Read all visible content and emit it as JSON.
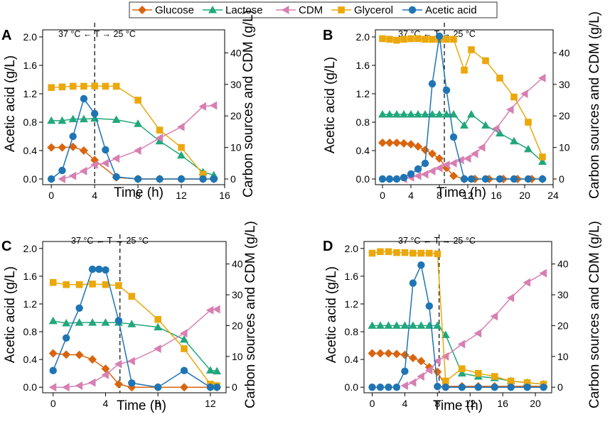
{
  "colors": {
    "Glucose": "#d9650f",
    "Lactose": "#22a77c",
    "CDM": "#d77fb2",
    "Glycerol": "#eba80c",
    "Acetic acid": "#1f74b4"
  },
  "chart_data": [
    {
      "type": "line",
      "panel": "A",
      "annotation": "37 °C ← T → 25 °C",
      "shift_time": 4,
      "xlabel": "Time (h)",
      "ylabel": "Acetic acid (g/L)",
      "y2label": "Carbon sources and CDM (g/L)",
      "xlim": [
        -0.8,
        16
      ],
      "xticks": [
        0,
        4,
        8,
        12,
        16
      ],
      "ylim": [
        -0.08,
        2.1
      ],
      "yticks": [
        0.0,
        0.4,
        0.8,
        1.2,
        1.6,
        2.0
      ],
      "y2lim": [
        -1.8,
        47.3
      ],
      "y2ticks": [
        0,
        10,
        20,
        30,
        40
      ],
      "series": [
        {
          "name": "Glucose",
          "axis": "right",
          "marker": "diamond",
          "x": [
            0,
            1,
            2,
            3,
            4,
            6,
            8,
            10,
            12,
            14,
            15
          ],
          "y": [
            10,
            10,
            10.2,
            9,
            6,
            0.5,
            0,
            0,
            0,
            0,
            0
          ]
        },
        {
          "name": "Lactose",
          "axis": "right",
          "marker": "triangle-up",
          "x": [
            0,
            1,
            2,
            3,
            4,
            6,
            8,
            10,
            12,
            14,
            15
          ],
          "y": [
            18.5,
            18.5,
            19,
            19,
            19.2,
            18.8,
            17.5,
            12,
            7.5,
            2.2,
            1.2
          ]
        },
        {
          "name": "CDM",
          "axis": "right",
          "marker": "triangle-left",
          "x": [
            1,
            2,
            3,
            4,
            5,
            6,
            8,
            10,
            12,
            14,
            15
          ],
          "y": [
            0,
            1,
            2.5,
            4.5,
            5,
            6.5,
            9,
            13,
            16.5,
            23,
            23.3
          ]
        },
        {
          "name": "Glycerol",
          "axis": "right",
          "marker": "square",
          "x": [
            0,
            1,
            2,
            3,
            4,
            5,
            6,
            8,
            10,
            12,
            14
          ],
          "y": [
            29,
            29.2,
            29.4,
            29.4,
            29.5,
            29.4,
            29.4,
            25,
            15.5,
            10,
            1.5
          ]
        },
        {
          "name": "Acetic acid",
          "axis": "left",
          "marker": "circle",
          "x": [
            0,
            1,
            2,
            3,
            4,
            5,
            6,
            8,
            10,
            12,
            14,
            15
          ],
          "y": [
            0.0,
            0.12,
            0.6,
            1.13,
            0.92,
            0.41,
            0.03,
            0.0,
            0.0,
            0.0,
            0.0,
            0.0
          ]
        }
      ]
    },
    {
      "type": "line",
      "panel": "B",
      "annotation": "37 °C ← T → 25 °C",
      "shift_time": 8.7,
      "xlabel": "Time (h)",
      "ylabel": "Acetic acid (g/L)",
      "y2label": "Carbon sources and CDM (g/L)",
      "xlim": [
        -1,
        24
      ],
      "xticks": [
        0,
        4,
        8,
        12,
        16,
        20,
        24
      ],
      "ylim": [
        -0.08,
        2.1
      ],
      "yticks": [
        0.0,
        0.4,
        0.8,
        1.2,
        1.6,
        2.0
      ],
      "y2lim": [
        -1.8,
        47.3
      ],
      "y2ticks": [
        0,
        10,
        20,
        30,
        40
      ],
      "series": [
        {
          "name": "Glucose",
          "axis": "right",
          "marker": "diamond",
          "x": [
            0,
            1,
            2,
            3,
            4,
            5,
            6,
            7,
            8,
            9,
            10,
            11.5,
            13,
            15,
            17,
            19,
            21,
            22.5
          ],
          "y": [
            11.5,
            11.5,
            11.5,
            11.3,
            11,
            10.3,
            9.2,
            8,
            6.5,
            3.5,
            1,
            0,
            0,
            0,
            0,
            0,
            0,
            0
          ]
        },
        {
          "name": "Lactose",
          "axis": "right",
          "marker": "triangle-up",
          "x": [
            0,
            1,
            2,
            3,
            4,
            5,
            6,
            7,
            8,
            9,
            10,
            11.5,
            12.5,
            14.5,
            16.5,
            18.5,
            20.5,
            22.5
          ],
          "y": [
            20.5,
            20.5,
            20.5,
            20.5,
            20.5,
            20.5,
            20.5,
            20.5,
            20.5,
            20.5,
            20.5,
            17,
            20.5,
            17,
            14.5,
            12,
            9.5,
            5.5
          ]
        },
        {
          "name": "CDM",
          "axis": "right",
          "marker": "triangle-left",
          "x": [
            3,
            4,
            5,
            6,
            7,
            8,
            9,
            10,
            11,
            12,
            13,
            14,
            16,
            18,
            20,
            22.5
          ],
          "y": [
            0,
            0.5,
            1,
            1.5,
            2.5,
            3.5,
            4.5,
            5,
            6,
            6.5,
            8,
            10,
            16,
            22,
            27,
            32
          ]
        },
        {
          "name": "Glycerol",
          "axis": "right",
          "marker": "square",
          "x": [
            0,
            1,
            2,
            3,
            4,
            5,
            6,
            7,
            8,
            9,
            10,
            11.5,
            12.5,
            14.5,
            16.5,
            18.5,
            20.5,
            22.5
          ],
          "y": [
            44.5,
            44.3,
            44,
            44.3,
            44.5,
            44.5,
            44.3,
            44.3,
            44.3,
            44.3,
            44.3,
            34.5,
            41,
            37.5,
            32,
            26,
            18,
            7
          ]
        },
        {
          "name": "Acetic acid",
          "axis": "left",
          "marker": "circle",
          "x": [
            0,
            1,
            2,
            3,
            4,
            5,
            6,
            7,
            8,
            9,
            10,
            11.5,
            12.5,
            14.5,
            16.5,
            18.5,
            20.5,
            22.5
          ],
          "y": [
            0.0,
            0.0,
            0.0,
            0.02,
            0.07,
            0.14,
            0.22,
            1.34,
            2.01,
            1.25,
            0.59,
            0.0,
            0.0,
            0.0,
            0.0,
            0.0,
            0.0,
            0.0
          ]
        }
      ]
    },
    {
      "type": "line",
      "panel": "C",
      "annotation": "37 °C ← T → 25 °C",
      "shift_time": 5.1,
      "xlabel": "Time (h)",
      "ylabel": "Acetic acid (g/L)",
      "y2label": "Carbon sources and CDM (g/L)",
      "xlim": [
        -0.8,
        13.2
      ],
      "xticks": [
        0,
        4,
        8,
        12
      ],
      "ylim": [
        -0.08,
        2.1
      ],
      "yticks": [
        0.0,
        0.4,
        0.8,
        1.2,
        1.6,
        2.0
      ],
      "y2lim": [
        -1.8,
        47.3
      ],
      "y2ticks": [
        0,
        10,
        20,
        30,
        40
      ],
      "series": [
        {
          "name": "Glucose",
          "axis": "right",
          "marker": "diamond",
          "x": [
            0,
            1,
            2,
            3,
            4,
            5,
            6,
            8,
            10,
            12,
            12.5
          ],
          "y": [
            11,
            10.6,
            10.5,
            9,
            6,
            1,
            0,
            0,
            0,
            0,
            0
          ]
        },
        {
          "name": "Lactose",
          "axis": "right",
          "marker": "triangle-up",
          "x": [
            0,
            1,
            2,
            3,
            4,
            5,
            6,
            8,
            10,
            12,
            12.5
          ],
          "y": [
            21.5,
            20.8,
            21,
            21,
            21,
            21,
            20.5,
            19.5,
            15.5,
            5.5,
            5.2
          ]
        },
        {
          "name": "CDM",
          "axis": "right",
          "marker": "triangle-left",
          "x": [
            0,
            1,
            2,
            3,
            4,
            5,
            6,
            8,
            10,
            12,
            12.5
          ],
          "y": [
            0,
            0,
            0.5,
            1.5,
            4,
            7.5,
            8.5,
            12.5,
            17.5,
            25,
            25.3
          ]
        },
        {
          "name": "Glycerol",
          "axis": "right",
          "marker": "square",
          "x": [
            0,
            1,
            2,
            3,
            4,
            5,
            6,
            8,
            10,
            12,
            12.5
          ],
          "y": [
            34,
            33.3,
            33.3,
            33.5,
            33.3,
            33,
            29.5,
            22,
            12.5,
            1,
            0.5
          ]
        },
        {
          "name": "Acetic acid",
          "axis": "left",
          "marker": "circle",
          "x": [
            0,
            1,
            2,
            3,
            3.5,
            4,
            5,
            6,
            8,
            10,
            12,
            12.5
          ],
          "y": [
            0.24,
            0.71,
            1.14,
            1.7,
            1.7,
            1.69,
            0.96,
            0.06,
            0.0,
            0.24,
            0.0,
            0.0
          ]
        }
      ]
    },
    {
      "type": "line",
      "panel": "D",
      "annotation": "37 °C ← T → 25 °C",
      "shift_time": 8.2,
      "xlabel": "Time (h)",
      "ylabel": "Acetic acid (g/L)",
      "y2label": "Carbon sources and CDM (g/L)",
      "xlim": [
        -1,
        22
      ],
      "xticks": [
        0,
        4,
        8,
        12,
        16,
        20
      ],
      "ylim": [
        -0.08,
        2.1
      ],
      "yticks": [
        0.0,
        0.4,
        0.8,
        1.2,
        1.6,
        2.0
      ],
      "y2lim": [
        -1.8,
        47.3
      ],
      "y2ticks": [
        0,
        10,
        20,
        30,
        40
      ],
      "series": [
        {
          "name": "Glucose",
          "axis": "right",
          "marker": "diamond",
          "x": [
            0,
            1,
            2,
            3,
            4,
            5,
            6,
            7,
            8,
            9,
            11,
            13,
            15,
            17,
            19,
            21
          ],
          "y": [
            11,
            11,
            11,
            10.8,
            10.5,
            9.5,
            8.5,
            6.5,
            5,
            0.3,
            0.3,
            0.3,
            0.3,
            0.3,
            0.3,
            0.3
          ]
        },
        {
          "name": "Lactose",
          "axis": "right",
          "marker": "triangle-up",
          "x": [
            0,
            1,
            2,
            3,
            4,
            5,
            6,
            7,
            8,
            9,
            11,
            13,
            15,
            17,
            19,
            21
          ],
          "y": [
            20,
            20,
            20,
            20,
            20,
            20,
            20,
            20,
            20,
            17,
            4.5,
            3.5,
            3,
            2,
            1.5,
            1
          ]
        },
        {
          "name": "CDM",
          "axis": "right",
          "marker": "triangle-left",
          "x": [
            4,
            5,
            6,
            7,
            8,
            9,
            11,
            13,
            15,
            17,
            19,
            21
          ],
          "y": [
            0.5,
            1.5,
            3.5,
            5.5,
            8.5,
            10,
            14,
            17.5,
            23,
            29,
            34,
            37
          ]
        },
        {
          "name": "Glycerol",
          "axis": "right",
          "marker": "square",
          "x": [
            0,
            1,
            2,
            3,
            4,
            5,
            6,
            7,
            8,
            9,
            11,
            13,
            15,
            17,
            19,
            21
          ],
          "y": [
            43.5,
            44,
            44,
            43.7,
            43.7,
            43.5,
            43.5,
            43.5,
            43.3,
            2,
            6,
            4.5,
            3.5,
            2,
            1.5,
            1
          ]
        },
        {
          "name": "Acetic acid",
          "axis": "left",
          "marker": "circle",
          "x": [
            0,
            1,
            2,
            3,
            4,
            5,
            6,
            7,
            8,
            9,
            11,
            13,
            15,
            17,
            19,
            21
          ],
          "y": [
            0.0,
            0.0,
            0.0,
            0.0,
            0.23,
            1.5,
            1.76,
            1.17,
            0.01,
            0.0,
            0.0,
            0.0,
            0.0,
            0.0,
            0.0,
            0.0
          ]
        }
      ]
    }
  ]
}
